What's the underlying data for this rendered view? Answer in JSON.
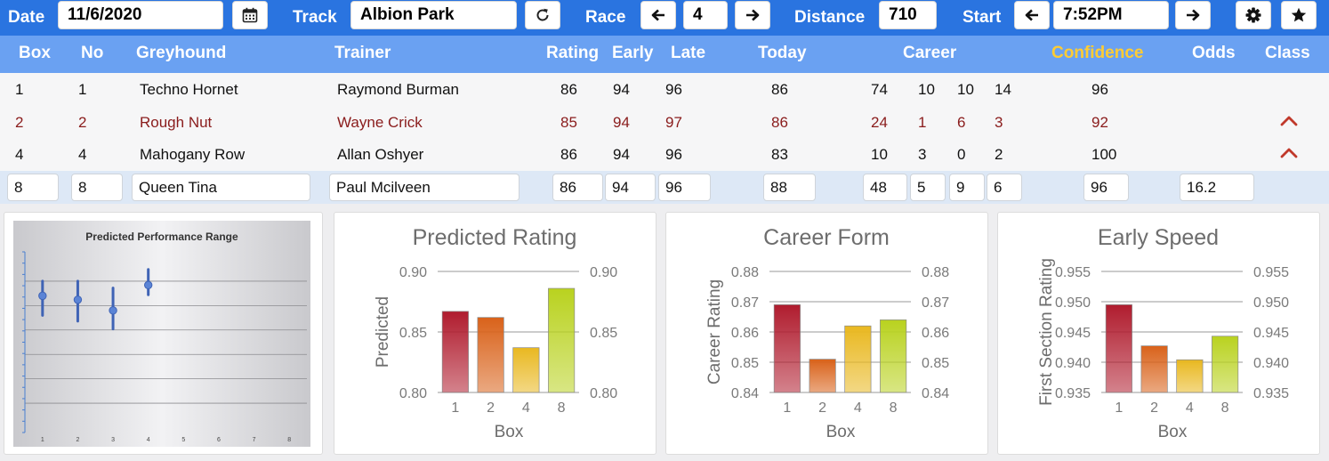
{
  "toolbar": {
    "date_label": "Date",
    "date_value": "11/6/2020",
    "track_label": "Track",
    "track_value": "Albion Park",
    "race_label": "Race",
    "race_value": "4",
    "distance_label": "Distance",
    "distance_value": "710",
    "start_label": "Start",
    "start_value": "7:52PM",
    "icons": [
      "calendar-icon",
      "refresh-icon",
      "arrow-left-icon",
      "arrow-right-icon",
      "gear-icon",
      "star-icon"
    ]
  },
  "table": {
    "columns": {
      "box": "Box",
      "no": "No",
      "greyhound": "Greyhound",
      "trainer": "Trainer",
      "rating": "Rating",
      "early": "Early",
      "late": "Late",
      "today": "Today",
      "career": "Career",
      "confidence": "Confidence",
      "odds": "Odds",
      "class": "Class"
    },
    "rows": [
      {
        "box": "1",
        "no": "1",
        "greyhound": "Techno Hornet",
        "trainer": "Raymond Burman",
        "rating": "86",
        "early": "94",
        "late": "96",
        "today": "86",
        "career": [
          "74",
          "10",
          "10",
          "14"
        ],
        "confidence": "96",
        "odds": "",
        "class": ""
      },
      {
        "box": "2",
        "no": "2",
        "greyhound": "Rough Nut",
        "trainer": "Wayne Crick",
        "rating": "85",
        "early": "94",
        "late": "97",
        "today": "86",
        "career": [
          "24",
          "1",
          "6",
          "3"
        ],
        "confidence": "92",
        "odds": "",
        "class": "up"
      },
      {
        "box": "4",
        "no": "4",
        "greyhound": "Mahogany Row",
        "trainer": "Allan Oshyer",
        "rating": "86",
        "early": "94",
        "late": "96",
        "today": "83",
        "career": [
          "10",
          "3",
          "0",
          "2"
        ],
        "confidence": "100",
        "odds": "",
        "class": "up"
      }
    ],
    "edit_row": {
      "box": "8",
      "no": "8",
      "greyhound": "Queen Tina",
      "trainer": "Paul Mcilveen",
      "rating": "86",
      "early": "94",
      "late": "96",
      "today": "88",
      "career": [
        "48",
        "5",
        "9",
        "6"
      ],
      "confidence": "96",
      "odds": "16.2"
    },
    "colors": {
      "header_bg": "#6aa1f2",
      "toolbar_bg": "#2a74e0",
      "highlight_text": "#8a1c1c",
      "confidence_header": "#ffcc33",
      "class_up": "#c0392b"
    }
  },
  "chart_data": [
    {
      "type": "scatter",
      "title": "Predicted Performance Range",
      "categories": [
        "1",
        "2",
        "3",
        "4",
        "5",
        "6",
        "7",
        "8"
      ],
      "ranges": [
        {
          "x": "1",
          "low": 0.4,
          "mid": 0.6,
          "high": 0.75
        },
        {
          "x": "2",
          "low": 0.34,
          "mid": 0.56,
          "high": 0.75
        },
        {
          "x": "3",
          "low": 0.26,
          "mid": 0.45,
          "high": 0.68
        },
        {
          "x": "4",
          "low": 0.61,
          "mid": 0.71,
          "high": 0.87
        }
      ],
      "ylim": [
        -0.8,
        1.05
      ]
    },
    {
      "type": "bar",
      "title": "Predicted Rating",
      "categories": [
        "1",
        "2",
        "4",
        "8"
      ],
      "values": [
        0.867,
        0.862,
        0.837,
        0.886
      ],
      "xlabel": "Box",
      "ylabel": "Predicted",
      "ylim": [
        0.8,
        0.9
      ],
      "yticks": [
        "0.80",
        "0.85",
        "0.90"
      ],
      "colors": [
        "#b01c2e",
        "#d9621a",
        "#e9b820",
        "#b9d21f"
      ]
    },
    {
      "type": "bar",
      "title": "Career Form",
      "categories": [
        "1",
        "2",
        "4",
        "8"
      ],
      "values": [
        0.869,
        0.851,
        0.862,
        0.864
      ],
      "xlabel": "Box",
      "ylabel": "Career Rating",
      "ylim": [
        0.84,
        0.88
      ],
      "yticks": [
        "0.84",
        "0.85",
        "0.86",
        "0.87",
        "0.88"
      ],
      "colors": [
        "#b01c2e",
        "#d9621a",
        "#e9b820",
        "#b9d21f"
      ]
    },
    {
      "type": "bar",
      "title": "Early Speed",
      "categories": [
        "1",
        "2",
        "4",
        "8"
      ],
      "values": [
        0.9495,
        0.9427,
        0.9404,
        0.9443
      ],
      "xlabel": "Box",
      "ylabel": "First Section Rating",
      "ylim": [
        0.935,
        0.955
      ],
      "yticks": [
        "0.935",
        "0.940",
        "0.945",
        "0.950",
        "0.955"
      ],
      "colors": [
        "#b01c2e",
        "#d9621a",
        "#e9b820",
        "#b9d21f"
      ]
    }
  ]
}
